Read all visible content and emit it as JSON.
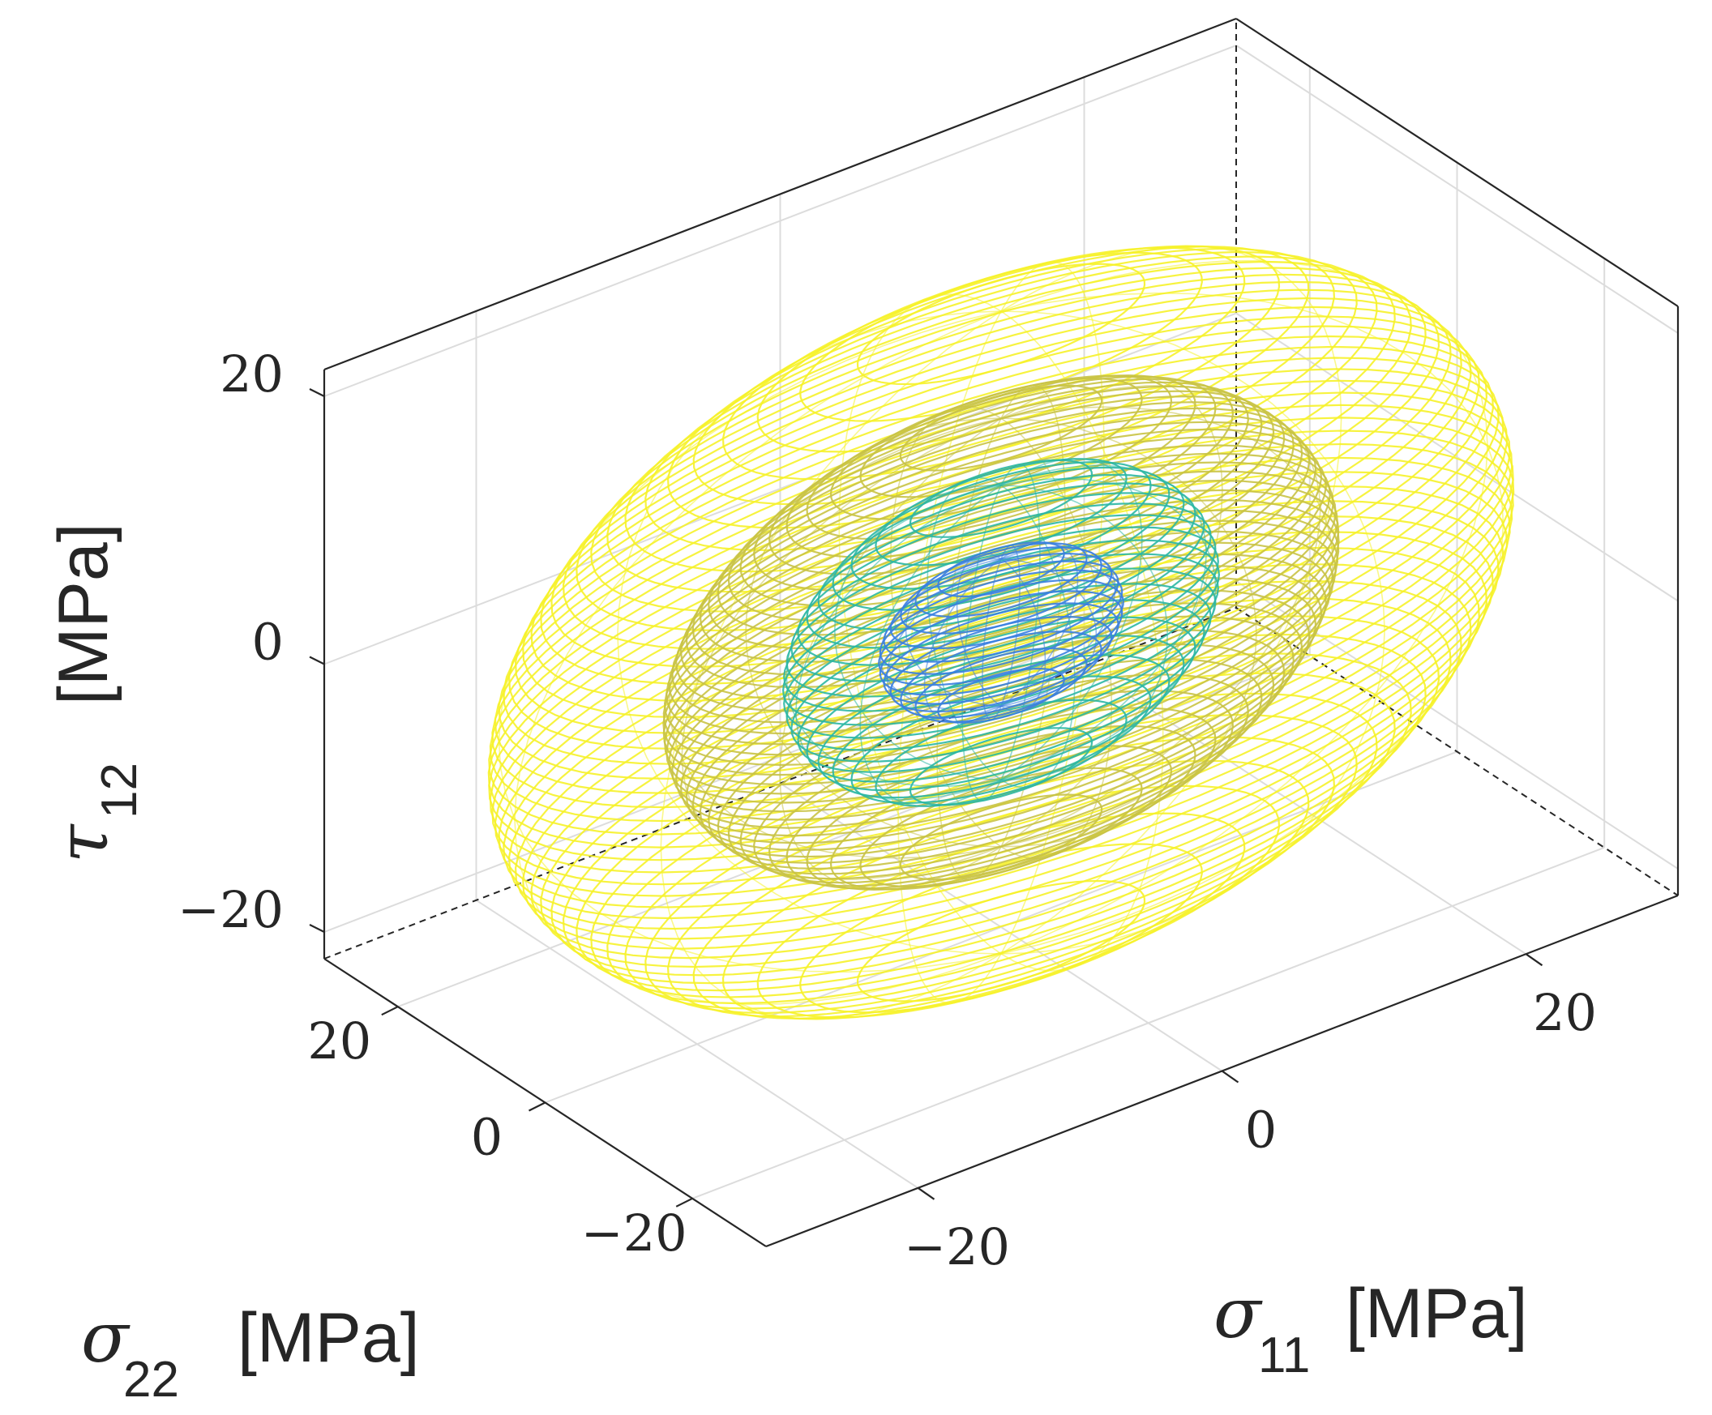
{
  "chart_data": {
    "type": "wireframe-3d",
    "xlabel": {
      "symbol": "σ",
      "sub": "11",
      "unit": "[MPa]"
    },
    "ylabel": {
      "symbol": "σ",
      "sub": "22",
      "unit": "[MPa]"
    },
    "zlabel": {
      "symbol": "τ",
      "sub": "12",
      "unit": "[MPa]"
    },
    "xlim": [
      -30,
      30
    ],
    "ylim": [
      -30,
      30
    ],
    "zlim": [
      -22,
      22
    ],
    "x_ticks": [
      {
        "value": -20,
        "label": "−20"
      },
      {
        "value": 0,
        "label": "0"
      },
      {
        "value": 20,
        "label": "20"
      }
    ],
    "y_ticks": [
      {
        "value": -20,
        "label": "−20"
      },
      {
        "value": 0,
        "label": "0"
      },
      {
        "value": 20,
        "label": "20"
      }
    ],
    "z_ticks": [
      {
        "value": -20,
        "label": "−20"
      },
      {
        "value": 0,
        "label": "0"
      },
      {
        "value": 20,
        "label": "20"
      }
    ],
    "grid": true,
    "series": [
      {
        "semi_axes": [
          32,
          22,
          24
        ],
        "color": "#f6f22a",
        "rings": 50
      },
      {
        "semi_axes": [
          21,
          15,
          16
        ],
        "color": "#c9c345",
        "rings": 44
      },
      {
        "semi_axes": [
          13.5,
          10,
          11
        ],
        "color": "#2bb7a4",
        "rings": 22
      },
      {
        "semi_axes": [
          7.5,
          6,
          5.5
        ],
        "color": "#3a7fe0",
        "rings": 14
      }
    ]
  }
}
